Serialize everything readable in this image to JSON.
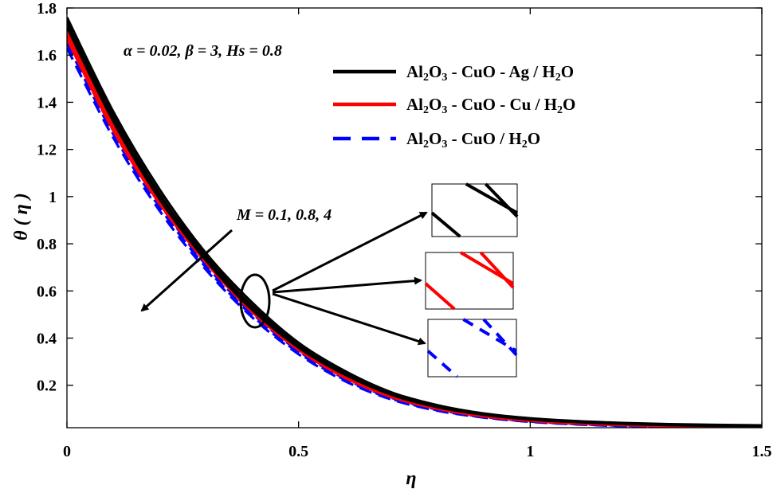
{
  "chart_data": {
    "type": "line",
    "xlabel": "η",
    "ylabel": "θ ( η )",
    "xlim": [
      0,
      1.5
    ],
    "ylim": [
      0.02,
      1.8
    ],
    "xticks": [
      0,
      0.5,
      1,
      1.5
    ],
    "xtick_labels": [
      "0",
      "0.5",
      "1",
      "1.5"
    ],
    "yticks": [
      0.2,
      0.4,
      0.6,
      0.8,
      1,
      1.2,
      1.4,
      1.6,
      1.8
    ],
    "ytick_labels": [
      "0.2",
      "0.4",
      "0.6",
      "0.8",
      "1",
      "1.2",
      "1.4",
      "1.6",
      "1.8"
    ],
    "grid": false,
    "legend_position": "top-right",
    "params_text": "α = 0.02, β = 3, Hs = 0.8",
    "annotation_text": "M = 0.1, 0.8, 4",
    "x": [
      0,
      0.1,
      0.2,
      0.3,
      0.4,
      0.5,
      0.6,
      0.7,
      0.8,
      0.9,
      1.0,
      1.1,
      1.2,
      1.3,
      1.4,
      1.5
    ],
    "series": [
      {
        "name": "Al2O3 - CuO - Ag / H2O",
        "legend_parts": [
          [
            "Al",
            ""
          ],
          [
            "2",
            "sub"
          ],
          [
            "O",
            ""
          ],
          [
            "3",
            "sub"
          ],
          [
            " - CuO - Ag / H",
            ""
          ],
          [
            "2",
            "sub"
          ],
          [
            "O",
            ""
          ]
        ],
        "color": "#000000",
        "dash": "solid",
        "curves": [
          [
            1.76,
            1.36,
            1.03,
            0.76,
            0.55,
            0.38,
            0.26,
            0.17,
            0.115,
            0.08,
            0.06,
            0.048,
            0.04,
            0.035,
            0.032,
            0.03
          ],
          [
            1.74,
            1.34,
            1.01,
            0.745,
            0.535,
            0.37,
            0.25,
            0.165,
            0.11,
            0.077,
            0.057,
            0.046,
            0.038,
            0.033,
            0.03,
            0.028
          ],
          [
            1.72,
            1.32,
            0.99,
            0.73,
            0.52,
            0.36,
            0.245,
            0.16,
            0.107,
            0.075,
            0.055,
            0.044,
            0.036,
            0.031,
            0.028,
            0.027
          ]
        ]
      },
      {
        "name": "Al2O3 - CuO - Cu / H2O",
        "legend_parts": [
          [
            "Al",
            ""
          ],
          [
            "2",
            "sub"
          ],
          [
            "O",
            ""
          ],
          [
            "3",
            "sub"
          ],
          [
            " - CuO - Cu / H",
            ""
          ],
          [
            "2",
            "sub"
          ],
          [
            "O",
            ""
          ]
        ],
        "color": "#ff0000",
        "dash": "solid",
        "curves": [
          [
            1.71,
            1.32,
            1.0,
            0.74,
            0.53,
            0.365,
            0.245,
            0.16,
            0.105,
            0.072,
            0.052,
            0.04,
            0.033,
            0.029,
            0.026,
            0.025
          ],
          [
            1.69,
            1.3,
            0.985,
            0.73,
            0.52,
            0.355,
            0.238,
            0.155,
            0.102,
            0.07,
            0.05,
            0.039,
            0.032,
            0.028,
            0.025,
            0.024
          ],
          [
            1.67,
            1.28,
            0.97,
            0.72,
            0.51,
            0.35,
            0.232,
            0.15,
            0.1,
            0.068,
            0.049,
            0.038,
            0.031,
            0.027,
            0.024,
            0.023
          ]
        ]
      },
      {
        "name": "Al2O3 - CuO / H2O",
        "legend_parts": [
          [
            "Al",
            ""
          ],
          [
            "2",
            "sub"
          ],
          [
            "O",
            ""
          ],
          [
            "3",
            "sub"
          ],
          [
            " - CuO / H",
            ""
          ],
          [
            "2",
            "sub"
          ],
          [
            "O",
            ""
          ]
        ],
        "color": "#0000ff",
        "dash": "dashed",
        "curves": [
          [
            1.67,
            1.28,
            0.97,
            0.71,
            0.505,
            0.345,
            0.228,
            0.147,
            0.097,
            0.066,
            0.047,
            0.036,
            0.029,
            0.025,
            0.023,
            0.022
          ],
          [
            1.65,
            1.265,
            0.955,
            0.7,
            0.495,
            0.338,
            0.223,
            0.143,
            0.094,
            0.064,
            0.046,
            0.035,
            0.028,
            0.024,
            0.022,
            0.021
          ],
          [
            1.63,
            1.25,
            0.94,
            0.69,
            0.488,
            0.332,
            0.218,
            0.14,
            0.092,
            0.063,
            0.045,
            0.034,
            0.027,
            0.023,
            0.021,
            0.02
          ]
        ]
      }
    ]
  }
}
